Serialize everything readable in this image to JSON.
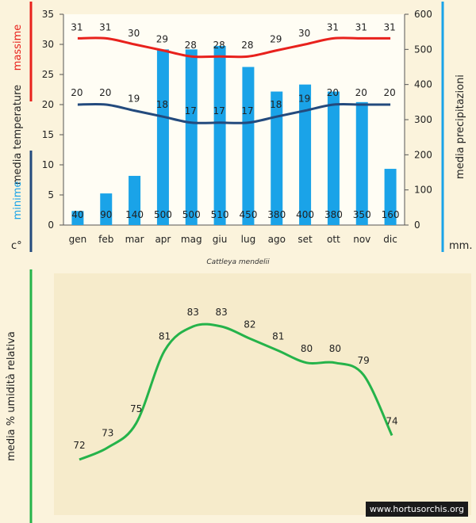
{
  "chart_data": [
    {
      "type": "bar+line",
      "subtitle": "Cattleya mendelii",
      "categories": [
        "gen",
        "feb",
        "mar",
        "apr",
        "mag",
        "giu",
        "lug",
        "ago",
        "set",
        "ott",
        "nov",
        "dic"
      ],
      "left_axis": {
        "label_top": "massime",
        "label_mid": "media  temperature",
        "label_bottom": "minime",
        "unit": "c°",
        "ylim": [
          0,
          35
        ],
        "ticks": [
          0,
          5,
          10,
          15,
          20,
          25,
          30,
          35
        ]
      },
      "right_axis": {
        "label": "media  precipitazioni",
        "unit": "mm.",
        "ylim": [
          0,
          600
        ],
        "ticks": [
          0,
          100,
          200,
          300,
          400,
          500,
          600
        ]
      },
      "bars": {
        "name": "precipitazioni",
        "values": [
          40,
          90,
          140,
          500,
          500,
          510,
          450,
          380,
          400,
          380,
          350,
          160
        ],
        "color": "#1aa3e8"
      },
      "series": [
        {
          "name": "massime",
          "values": [
            31,
            31,
            30,
            29,
            28,
            28,
            28,
            29,
            30,
            31,
            31,
            31
          ],
          "color": "#e8211c"
        },
        {
          "name": "minime",
          "values": [
            20,
            20,
            19,
            18,
            17,
            17,
            17,
            18,
            19,
            20,
            20,
            20
          ],
          "color": "#234a7d"
        }
      ]
    },
    {
      "type": "line",
      "ylabel": "media % umidità relativa",
      "categories": [
        "gen",
        "feb",
        "mar",
        "apr",
        "mag",
        "giu",
        "lug",
        "ago",
        "set",
        "ott",
        "nov",
        "dic"
      ],
      "series": [
        {
          "name": "umidità relativa",
          "values": [
            72,
            73,
            75,
            81,
            83,
            83,
            82,
            81,
            80,
            80,
            79,
            74
          ],
          "color": "#25b34a"
        }
      ]
    }
  ],
  "watermark": "www.hortusorchis.org",
  "colors": {
    "panel": "#f6ebcb",
    "grid": "#9a9a9a"
  }
}
